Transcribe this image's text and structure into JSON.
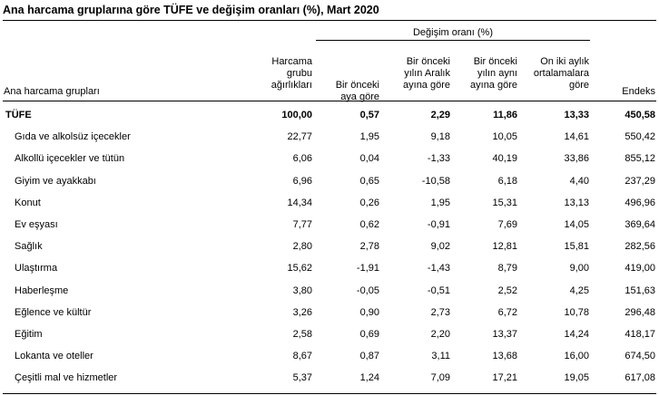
{
  "title": "Ana harcama gruplarına göre TÜFE ve değişim oranları (%), Mart 2020",
  "group_header": "Değişim oranı (%)",
  "columns": {
    "name": "Ana harcama grupları",
    "weight": [
      "Harcama",
      "grubu",
      "ağırlıkları"
    ],
    "monthly": [
      "Bir önceki",
      "aya göre"
    ],
    "dec": [
      "Bir önceki",
      "yılın Aralık",
      "ayına göre"
    ],
    "yoy": [
      "Bir önceki",
      "yılın aynı",
      "ayına göre"
    ],
    "avg12": [
      "On iki aylık",
      "ortalamalara",
      "göre"
    ],
    "index": [
      "Endeks"
    ]
  },
  "rows": [
    {
      "name": "TÜFE",
      "weight": "100,00",
      "monthly": "0,57",
      "dec": "2,29",
      "yoy": "11,86",
      "avg12": "13,33",
      "index": "450,58"
    },
    {
      "name": "Gıda ve alkolsüz içecekler",
      "weight": "22,77",
      "monthly": "1,95",
      "dec": "9,18",
      "yoy": "10,05",
      "avg12": "14,61",
      "index": "550,42"
    },
    {
      "name": "Alkollü içecekler ve tütün",
      "weight": "6,06",
      "monthly": "0,04",
      "dec": "-1,33",
      "yoy": "40,19",
      "avg12": "33,86",
      "index": "855,12"
    },
    {
      "name": "Giyim ve ayakkabı",
      "weight": "6,96",
      "monthly": "0,65",
      "dec": "-10,58",
      "yoy": "6,18",
      "avg12": "4,40",
      "index": "237,29"
    },
    {
      "name": "Konut",
      "weight": "14,34",
      "monthly": "0,26",
      "dec": "1,95",
      "yoy": "15,31",
      "avg12": "13,13",
      "index": "496,96"
    },
    {
      "name": "Ev eşyası",
      "weight": "7,77",
      "monthly": "0,62",
      "dec": "-0,91",
      "yoy": "7,69",
      "avg12": "14,05",
      "index": "369,64"
    },
    {
      "name": "Sağlık",
      "weight": "2,80",
      "monthly": "2,78",
      "dec": "9,02",
      "yoy": "12,81",
      "avg12": "15,81",
      "index": "282,56"
    },
    {
      "name": "Ulaştırma",
      "weight": "15,62",
      "monthly": "-1,91",
      "dec": "-1,43",
      "yoy": "8,79",
      "avg12": "9,00",
      "index": "419,00"
    },
    {
      "name": "Haberleşme",
      "weight": "3,80",
      "monthly": "-0,05",
      "dec": "-0,51",
      "yoy": "2,52",
      "avg12": "4,25",
      "index": "151,63"
    },
    {
      "name": "Eğlence ve kültür",
      "weight": "3,26",
      "monthly": "0,90",
      "dec": "2,73",
      "yoy": "6,72",
      "avg12": "10,78",
      "index": "296,48"
    },
    {
      "name": "Eğitim",
      "weight": "2,58",
      "monthly": "0,69",
      "dec": "2,20",
      "yoy": "13,37",
      "avg12": "14,24",
      "index": "418,17"
    },
    {
      "name": "Lokanta ve oteller",
      "weight": "8,67",
      "monthly": "0,87",
      "dec": "3,11",
      "yoy": "13,68",
      "avg12": "16,00",
      "index": "674,50"
    },
    {
      "name": "Çeşitli mal ve hizmetler",
      "weight": "5,37",
      "monthly": "1,24",
      "dec": "7,09",
      "yoy": "17,21",
      "avg12": "19,05",
      "index": "617,08"
    }
  ]
}
